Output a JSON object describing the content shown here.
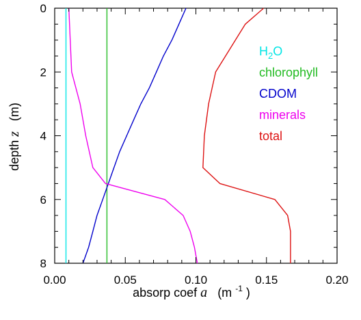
{
  "chart_data": {
    "type": "line",
    "title": "",
    "xlabel": {
      "prefix": "absorp coef ",
      "symbol": "a",
      "unit_open": "(m",
      "unit_exp": "-1",
      "unit_close": ")"
    },
    "ylabel": {
      "prefix": "depth ",
      "symbol": "z",
      "unit": "(m)"
    },
    "xlim": [
      0.0,
      0.2
    ],
    "ylim": [
      8,
      0
    ],
    "y_inverted": true,
    "grid": false,
    "legend_placement": "right",
    "x_ticks": [
      0.0,
      0.05,
      0.1,
      0.15,
      0.2
    ],
    "x_tick_labels": [
      "0.00",
      "0.05",
      "0.10",
      "0.15",
      "0.20"
    ],
    "y_ticks": [
      0,
      2,
      4,
      6,
      8
    ],
    "y_tick_labels": [
      "0",
      "2",
      "4",
      "6",
      "8"
    ],
    "series": [
      {
        "name": "H2O",
        "legend_base": "H",
        "legend_sub": "2",
        "legend_tail": "O",
        "color": "#00e5e5",
        "points": [
          [
            0.008,
            0
          ],
          [
            0.008,
            8
          ]
        ]
      },
      {
        "name": "chlorophyll",
        "color": "#22bb22",
        "points": [
          [
            0.037,
            0
          ],
          [
            0.037,
            8
          ]
        ]
      },
      {
        "name": "CDOM",
        "color": "#0000cc",
        "points": [
          [
            0.093,
            0
          ],
          [
            0.088,
            0.5
          ],
          [
            0.083,
            1.0
          ],
          [
            0.077,
            1.5
          ],
          [
            0.072,
            2.0
          ],
          [
            0.067,
            2.5
          ],
          [
            0.061,
            3.0
          ],
          [
            0.056,
            3.5
          ],
          [
            0.051,
            4.0
          ],
          [
            0.046,
            4.5
          ],
          [
            0.042,
            5.0
          ],
          [
            0.038,
            5.5
          ],
          [
            0.034,
            6.0
          ],
          [
            0.03,
            6.5
          ],
          [
            0.027,
            7.0
          ],
          [
            0.024,
            7.5
          ],
          [
            0.02,
            8.0
          ]
        ]
      },
      {
        "name": "minerals",
        "color": "#ee00ee",
        "points": [
          [
            0.01,
            0
          ],
          [
            0.011,
            1.0
          ],
          [
            0.012,
            2.0
          ],
          [
            0.018,
            3.0
          ],
          [
            0.022,
            4.0
          ],
          [
            0.027,
            5.0
          ],
          [
            0.036,
            5.5
          ],
          [
            0.078,
            6.0
          ],
          [
            0.091,
            6.5
          ],
          [
            0.096,
            7.0
          ],
          [
            0.099,
            7.5
          ],
          [
            0.101,
            8.0
          ]
        ]
      },
      {
        "name": "total",
        "color": "#dd1111",
        "points": [
          [
            0.148,
            0
          ],
          [
            0.135,
            0.5
          ],
          [
            0.128,
            1.0
          ],
          [
            0.121,
            1.5
          ],
          [
            0.114,
            2.0
          ],
          [
            0.109,
            3.0
          ],
          [
            0.106,
            4.0
          ],
          [
            0.105,
            5.0
          ],
          [
            0.117,
            5.5
          ],
          [
            0.156,
            6.0
          ],
          [
            0.165,
            6.5
          ],
          [
            0.167,
            7.0
          ],
          [
            0.167,
            8.0
          ]
        ]
      }
    ]
  }
}
